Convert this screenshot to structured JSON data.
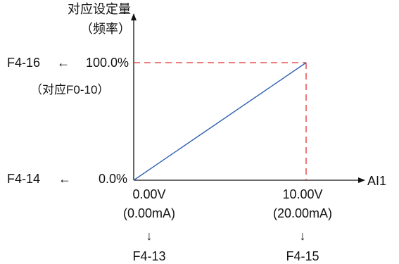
{
  "colors": {
    "axis": "#111111",
    "line": "#2e5fb0",
    "guide": "#e03030"
  },
  "y_axis": {
    "title_line1": "对应设定量",
    "title_line2": "（频率）"
  },
  "x_axis": {
    "title": "AI1"
  },
  "top_point": {
    "param": "F4-16",
    "arrow": "←",
    "value": "100.0%",
    "note": "（对应F0-10）"
  },
  "bottom_point": {
    "param": "F4-14",
    "arrow": "←",
    "value": "0.0%"
  },
  "x_min": {
    "voltage": "0.00V",
    "current": "(0.00mA)",
    "arrow": "↓",
    "param": "F4-13"
  },
  "x_max": {
    "voltage": "10.00V",
    "current": "(20.00mA)",
    "arrow": "↓",
    "param": "F4-15"
  }
}
